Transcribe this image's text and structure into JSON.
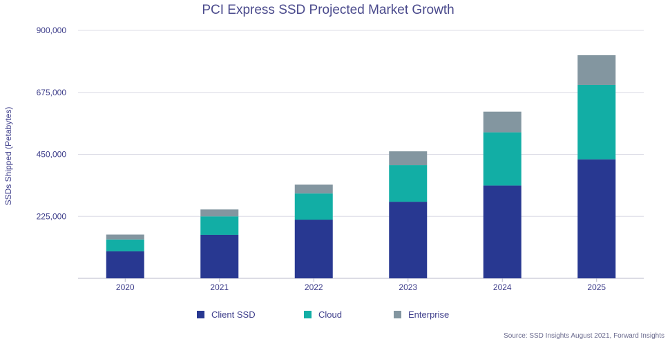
{
  "chart_data": {
    "type": "bar",
    "stacked": true,
    "title": "PCI Express SSD Projected Market Growth",
    "ylabel": "SSDs Shipped (Petabytes)",
    "xlabel": "",
    "categories": [
      "2020",
      "2021",
      "2022",
      "2023",
      "2024",
      "2025"
    ],
    "ylim": [
      0,
      900000
    ],
    "yticks": [
      225000,
      450000,
      675000,
      900000
    ],
    "ytick_labels": [
      "225,000",
      "450,000",
      "675,000",
      "900,000"
    ],
    "grid": true,
    "legend_position": "bottom",
    "series": [
      {
        "name": "Client SSD",
        "color": "#283891",
        "values": [
          98000,
          158000,
          213000,
          278000,
          337000,
          432000
        ]
      },
      {
        "name": "Cloud",
        "color": "#12aea5",
        "values": [
          43000,
          67000,
          95000,
          133000,
          193000,
          270000
        ]
      },
      {
        "name": "Enterprise",
        "color": "#8396a0",
        "values": [
          18000,
          25000,
          32000,
          50000,
          75000,
          108000
        ]
      }
    ],
    "source": "Source: SSD Insights August 2021, Forward Insights"
  }
}
